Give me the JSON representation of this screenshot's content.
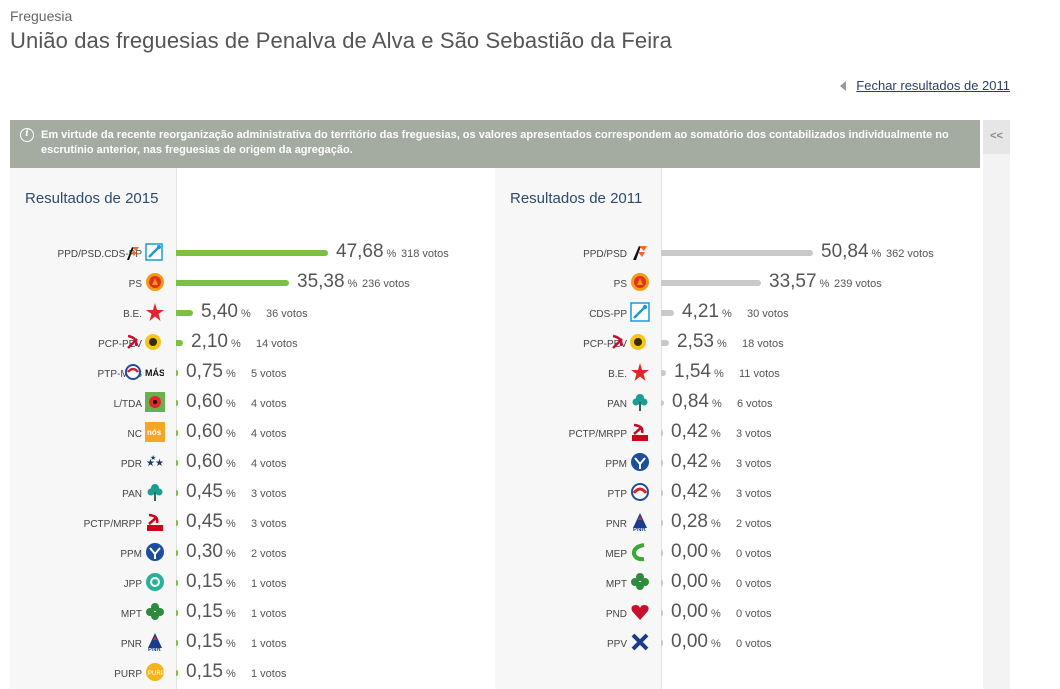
{
  "header": {
    "kicker": "Freguesia",
    "title": "União das freguesias de Penalva de Alva e São Sebastião da Feira"
  },
  "close_link": "Fechar resultados de 2011",
  "notice": "Em virtude da recente reorganização administrativa do território das freguesias, os valores apresentados correspondem ao somatório dos contabilizados individualmente no escrutínio anterior, nas freguesias de origem da agregação.",
  "collapse_label": "<<",
  "pct_symbol": "%",
  "results_2015": {
    "title": "Resultados de 2015",
    "rows": [
      {
        "party": "PPD/PSD.CDS-PP",
        "pct": "47,68",
        "votes": "318 votos",
        "value": 47.68,
        "icon": "ppd-psd-cds-logo-icon",
        "color": "#f26a21"
      },
      {
        "party": "PS",
        "pct": "35,38",
        "votes": "236 votos",
        "value": 35.38,
        "icon": "ps-logo-icon",
        "color": "#e0301e"
      },
      {
        "party": "B.E.",
        "pct": "5,40",
        "votes": "36 votos",
        "value": 5.4,
        "icon": "be-star-icon",
        "color": "#e3242b"
      },
      {
        "party": "PCP-PEV",
        "pct": "2,10",
        "votes": "14 votos",
        "value": 2.1,
        "icon": "pcp-pev-logo-icon",
        "color": "#c8102e"
      },
      {
        "party": "PTP-MAS",
        "pct": "0,75",
        "votes": "5 votos",
        "value": 0.75,
        "icon": "ptp-mas-logo-icon",
        "color": "#d62027"
      },
      {
        "party": "L/TDA",
        "pct": "0,60",
        "votes": "4 votos",
        "value": 0.6,
        "icon": "livre-poppy-icon",
        "color": "#6ab04c"
      },
      {
        "party": "NC",
        "pct": "0,60",
        "votes": "4 votos",
        "value": 0.6,
        "icon": "nc-logo-icon",
        "color": "#f5a623"
      },
      {
        "party": "PDR",
        "pct": "0,60",
        "votes": "4 votos",
        "value": 0.6,
        "icon": "pdr-stars-icon",
        "color": "#1b3a6b"
      },
      {
        "party": "PAN",
        "pct": "0,45",
        "votes": "3 votos",
        "value": 0.45,
        "icon": "pan-tree-icon",
        "color": "#1a9e8f"
      },
      {
        "party": "PCTP/MRPP",
        "pct": "0,45",
        "votes": "3 votos",
        "value": 0.45,
        "icon": "pctp-mrpp-logo-icon",
        "color": "#d0021b"
      },
      {
        "party": "PPM",
        "pct": "0,30",
        "votes": "2 votos",
        "value": 0.3,
        "icon": "ppm-logo-icon",
        "color": "#1d4e9e"
      },
      {
        "party": "JPP",
        "pct": "0,15",
        "votes": "1 votos",
        "value": 0.15,
        "icon": "jpp-logo-icon",
        "color": "#2ab09a"
      },
      {
        "party": "MPT",
        "pct": "0,15",
        "votes": "1 votos",
        "value": 0.15,
        "icon": "mpt-clover-icon",
        "color": "#2e8b3d"
      },
      {
        "party": "PNR",
        "pct": "0,15",
        "votes": "1 votos",
        "value": 0.15,
        "icon": "pnr-logo-icon",
        "color": "#1d3b8c"
      },
      {
        "party": "PURP",
        "pct": "0,15",
        "votes": "1 votos",
        "value": 0.15,
        "icon": "purp-logo-icon",
        "color": "#f3b51b"
      }
    ]
  },
  "results_2011": {
    "title": "Resultados de 2011",
    "rows": [
      {
        "party": "PPD/PSD",
        "pct": "50,84",
        "votes": "362 votos",
        "value": 50.84,
        "icon": "ppd-psd-logo-icon",
        "color": "#f26a21"
      },
      {
        "party": "PS",
        "pct": "33,57",
        "votes": "239 votos",
        "value": 33.57,
        "icon": "ps-logo-icon",
        "color": "#e0301e"
      },
      {
        "party": "CDS-PP",
        "pct": "4,21",
        "votes": "30 votos",
        "value": 4.21,
        "icon": "cds-pp-logo-icon",
        "color": "#1b9ad6"
      },
      {
        "party": "PCP-PEV",
        "pct": "2,53",
        "votes": "18 votos",
        "value": 2.53,
        "icon": "pcp-pev-logo-icon",
        "color": "#c8102e"
      },
      {
        "party": "B.E.",
        "pct": "1,54",
        "votes": "11 votos",
        "value": 1.54,
        "icon": "be-star-icon",
        "color": "#e3242b"
      },
      {
        "party": "PAN",
        "pct": "0,84",
        "votes": "6 votos",
        "value": 0.84,
        "icon": "pan-tree-icon",
        "color": "#1a9e8f"
      },
      {
        "party": "PCTP/MRPP",
        "pct": "0,42",
        "votes": "3 votos",
        "value": 0.42,
        "icon": "pctp-mrpp-logo-icon",
        "color": "#d0021b"
      },
      {
        "party": "PPM",
        "pct": "0,42",
        "votes": "3 votos",
        "value": 0.42,
        "icon": "ppm-logo-icon",
        "color": "#1d4e9e"
      },
      {
        "party": "PTP",
        "pct": "0,42",
        "votes": "3 votos",
        "value": 0.42,
        "icon": "ptp-logo-icon",
        "color": "#d62027"
      },
      {
        "party": "PNR",
        "pct": "0,28",
        "votes": "2 votos",
        "value": 0.28,
        "icon": "pnr-logo-icon",
        "color": "#1d3b8c"
      },
      {
        "party": "MEP",
        "pct": "0,00",
        "votes": "0 votos",
        "value": 0.0,
        "icon": "mep-logo-icon",
        "color": "#3aaa35"
      },
      {
        "party": "MPT",
        "pct": "0,00",
        "votes": "0 votos",
        "value": 0.0,
        "icon": "mpt-clover-icon",
        "color": "#2e8b3d"
      },
      {
        "party": "PND",
        "pct": "0,00",
        "votes": "0 votos",
        "value": 0.0,
        "icon": "pnd-heart-icon",
        "color": "#c8102e"
      },
      {
        "party": "PPV",
        "pct": "0,00",
        "votes": "0 votos",
        "value": 0.0,
        "icon": "ppv-logo-icon",
        "color": "#1d3b8c"
      }
    ]
  }
}
